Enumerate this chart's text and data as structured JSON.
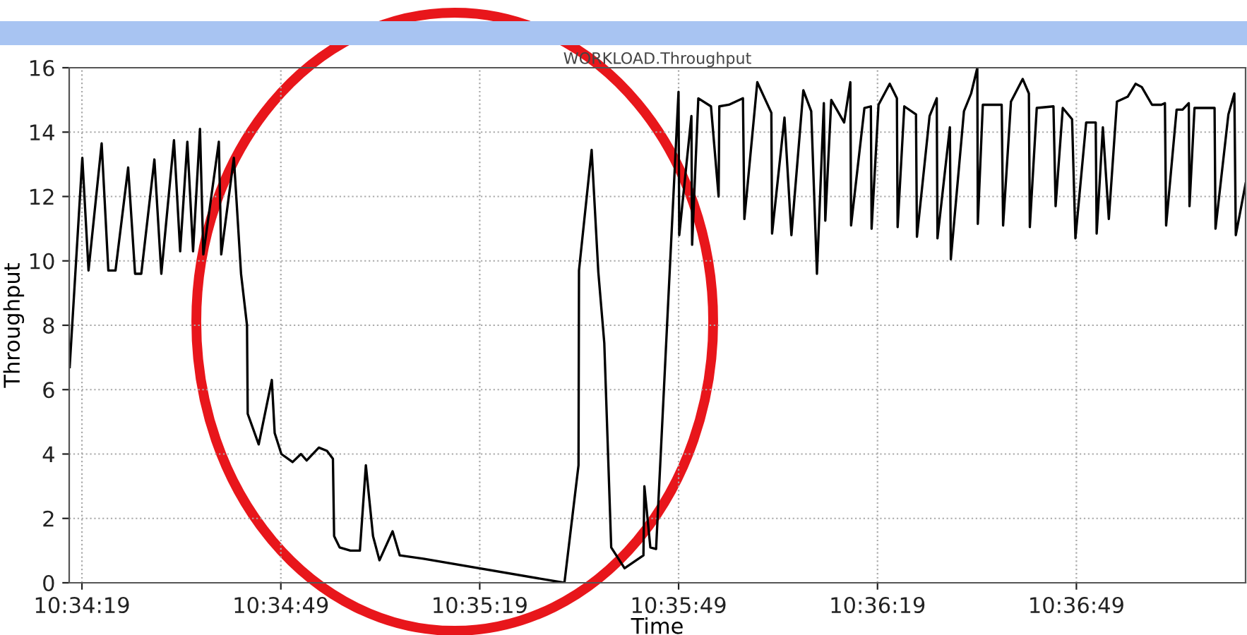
{
  "chart_data": {
    "type": "line",
    "title": "WORKLOAD.Throughput",
    "xlabel": "Time",
    "ylabel": "Throughput",
    "xlim": [
      10.57141,
      10.6207
    ],
    "ylim": [
      0,
      16
    ],
    "xticks": [
      {
        "value": 10.571944,
        "label": "10:34:19"
      },
      {
        "value": 10.580278,
        "label": "10:34:49"
      },
      {
        "value": 10.588611,
        "label": "10:35:19"
      },
      {
        "value": 10.596944,
        "label": "10:35:49"
      },
      {
        "value": 10.605278,
        "label": "10:36:19"
      },
      {
        "value": 10.613611,
        "label": "10:36:49"
      }
    ],
    "yticks": [
      0,
      2,
      4,
      6,
      8,
      10,
      12,
      14,
      16
    ],
    "grid": true,
    "marker": "none",
    "line_style": "solid",
    "series": [
      {
        "color": "#000000",
        "x": [
          10.57143,
          10.57196,
          10.57222,
          10.57277,
          10.57305,
          10.57335,
          10.57388,
          10.57417,
          10.57443,
          10.57498,
          10.57527,
          10.5758,
          10.57606,
          10.57636,
          10.5766,
          10.57689,
          10.57703,
          10.57768,
          10.57778,
          10.57831,
          10.57861,
          10.57886,
          10.57889,
          10.57935,
          10.5799,
          10.58002,
          10.5803,
          10.58077,
          10.58112,
          10.58136,
          10.58187,
          10.58221,
          10.58246,
          10.58251,
          10.58274,
          10.58319,
          10.58359,
          10.58384,
          10.58414,
          10.58441,
          10.58496,
          10.58526,
          10.58625,
          10.59216,
          10.59275,
          10.59277,
          10.5933,
          10.59358,
          10.59383,
          10.59412,
          10.59468,
          10.59547,
          10.59551,
          10.59576,
          10.596,
          10.59694,
          10.59697,
          10.59748,
          10.59751,
          10.59777,
          10.5983,
          10.59862,
          10.59865,
          10.59905,
          10.59964,
          10.5997,
          10.60024,
          10.60083,
          10.60086,
          10.60138,
          10.60167,
          10.60217,
          10.6025,
          10.60274,
          10.60303,
          10.60309,
          10.60334,
          10.60388,
          10.60414,
          10.60417,
          10.60473,
          10.605,
          10.60503,
          10.60532,
          10.60579,
          10.60609,
          10.60612,
          10.6064,
          10.60689,
          10.60693,
          10.60746,
          10.60776,
          10.60779,
          10.60831,
          10.60835,
          10.6089,
          10.6092,
          10.60946,
          10.60948,
          10.60969,
          10.61048,
          10.61054,
          10.61087,
          10.61136,
          10.61162,
          10.61166,
          10.61195,
          10.61265,
          10.61274,
          10.61304,
          10.61343,
          10.61357,
          10.61402,
          10.61442,
          10.61446,
          10.61472,
          10.61497,
          10.61531,
          10.61576,
          10.61609,
          10.61635,
          10.61678,
          10.61717,
          10.61732,
          10.61737,
          10.61781,
          10.61806,
          10.61832,
          10.61835,
          10.61856,
          10.6194,
          10.61944,
          10.61998,
          10.62023,
          10.62029,
          10.6207
        ],
        "values": [
          6.7,
          13.2,
          9.7,
          13.65,
          9.7,
          9.7,
          12.9,
          9.6,
          9.6,
          13.15,
          9.6,
          13.75,
          10.3,
          13.7,
          10.3,
          14.1,
          10.2,
          13.7,
          10.2,
          13.2,
          9.6,
          8.0,
          5.25,
          4.3,
          6.3,
          4.65,
          4.0,
          3.75,
          4.0,
          3.8,
          4.2,
          4.1,
          3.85,
          1.45,
          1.1,
          1.0,
          1.0,
          3.65,
          1.45,
          0.7,
          1.6,
          0.85,
          0.75,
          0.0,
          3.65,
          9.7,
          13.45,
          9.65,
          7.45,
          1.1,
          0.45,
          0.85,
          3.0,
          1.1,
          1.05,
          15.25,
          10.8,
          14.5,
          10.5,
          15.05,
          14.8,
          12.0,
          14.8,
          14.85,
          15.05,
          11.3,
          15.55,
          14.6,
          10.85,
          14.45,
          10.8,
          15.3,
          14.65,
          9.6,
          14.9,
          11.25,
          15.0,
          14.3,
          15.55,
          11.1,
          14.75,
          14.8,
          11.0,
          14.85,
          15.5,
          15.05,
          11.05,
          14.8,
          14.55,
          10.75,
          14.5,
          15.05,
          10.7,
          14.15,
          10.05,
          14.65,
          15.2,
          16.0,
          11.15,
          14.85,
          14.85,
          11.1,
          14.95,
          15.65,
          15.2,
          11.05,
          14.75,
          14.8,
          11.7,
          14.75,
          14.4,
          10.7,
          14.3,
          14.3,
          10.85,
          14.15,
          11.3,
          14.95,
          15.1,
          15.5,
          15.4,
          14.85,
          14.85,
          14.9,
          11.1,
          14.7,
          14.7,
          14.9,
          11.7,
          14.75,
          14.75,
          11.0,
          14.55,
          15.2,
          10.8,
          12.4
        ]
      }
    ]
  }
}
